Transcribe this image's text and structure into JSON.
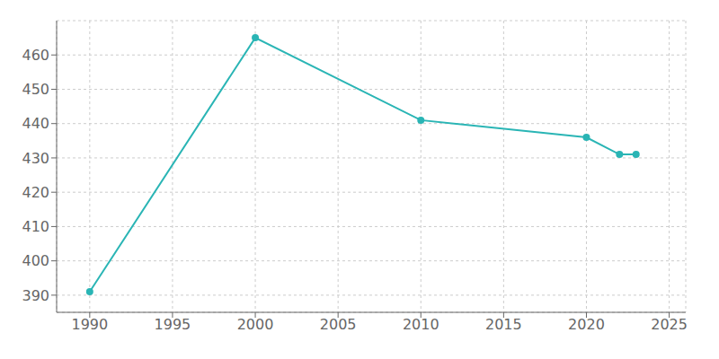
{
  "chart_data": {
    "type": "line",
    "x": [
      1990,
      2000,
      2010,
      2020,
      2022,
      2023
    ],
    "values": [
      391,
      465,
      441,
      436,
      431,
      431
    ],
    "color": "#2ab5b5",
    "marker": "circle",
    "xlim": [
      1988,
      2026
    ],
    "ylim": [
      385,
      470
    ],
    "xticks": [
      1990,
      1995,
      2000,
      2005,
      2010,
      2015,
      2020,
      2025
    ],
    "yticks": [
      390,
      400,
      410,
      420,
      430,
      440,
      450,
      460
    ],
    "grid": true
  }
}
